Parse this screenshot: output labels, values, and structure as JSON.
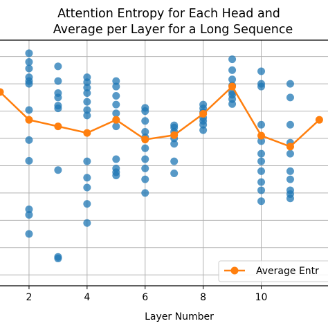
{
  "chart_data": {
    "type": "scatter",
    "title": [
      "Attention Entropy for Each Head and",
      "Average per Layer for a Long Sequence"
    ],
    "xlabel": "Layer Number",
    "ylabel": "",
    "x_ticks": [
      2,
      4,
      6,
      8,
      10
    ],
    "xlim": [
      1,
      12.3
    ],
    "ylim": [
      0.8,
      5.3
    ],
    "grid": true,
    "legend": {
      "position": "bottom-right",
      "entries": [
        "Average Entr"
      ]
    },
    "colors": {
      "heads": "#1f77b4",
      "average": "#ff7f0e",
      "grid": "#b0b0b0"
    },
    "series": [
      {
        "kind": "scatter",
        "points": [
          [
            2,
            5.06
          ],
          [
            2,
            4.9
          ],
          [
            2,
            4.78
          ],
          [
            2,
            4.62
          ],
          [
            2,
            4.55
          ],
          [
            2,
            4.5
          ],
          [
            2,
            4.02
          ],
          [
            2,
            3.47
          ],
          [
            2,
            3.09
          ],
          [
            2,
            2.2
          ],
          [
            2,
            2.1
          ],
          [
            2,
            1.75
          ],
          [
            3,
            4.82
          ],
          [
            3,
            4.55
          ],
          [
            3,
            4.33
          ],
          [
            3,
            4.25
          ],
          [
            3,
            4.1
          ],
          [
            3,
            4.05
          ],
          [
            3,
            2.92
          ],
          [
            3,
            1.33
          ],
          [
            3,
            1.3
          ],
          [
            4,
            4.62
          ],
          [
            4,
            4.53
          ],
          [
            4,
            4.43
          ],
          [
            4,
            4.33
          ],
          [
            4,
            4.17
          ],
          [
            4,
            4.02
          ],
          [
            4,
            3.92
          ],
          [
            4,
            3.08
          ],
          [
            4,
            2.78
          ],
          [
            4,
            2.6
          ],
          [
            4,
            2.3
          ],
          [
            4,
            1.95
          ],
          [
            5,
            4.55
          ],
          [
            5,
            4.45
          ],
          [
            5,
            4.28
          ],
          [
            5,
            4.12
          ],
          [
            5,
            3.96
          ],
          [
            5,
            3.72
          ],
          [
            5,
            3.12
          ],
          [
            5,
            2.95
          ],
          [
            5,
            2.88
          ],
          [
            5,
            2.82
          ],
          [
            6,
            4.06
          ],
          [
            6,
            4.0
          ],
          [
            6,
            3.82
          ],
          [
            6,
            3.62
          ],
          [
            6,
            3.52
          ],
          [
            6,
            3.32
          ],
          [
            6,
            3.12
          ],
          [
            6,
            2.95
          ],
          [
            6,
            2.75
          ],
          [
            6,
            2.5
          ],
          [
            7,
            3.74
          ],
          [
            7,
            3.7
          ],
          [
            7,
            3.62
          ],
          [
            7,
            3.5
          ],
          [
            7,
            3.4
          ],
          [
            7,
            3.08
          ],
          [
            7,
            2.86
          ],
          [
            8,
            4.12
          ],
          [
            8,
            4.05
          ],
          [
            8,
            3.98
          ],
          [
            8,
            3.88
          ],
          [
            8,
            3.82
          ],
          [
            8,
            3.75
          ],
          [
            8,
            3.65
          ],
          [
            9,
            4.95
          ],
          [
            9,
            4.75
          ],
          [
            9,
            4.58
          ],
          [
            9,
            4.47
          ],
          [
            9,
            4.35
          ],
          [
            9,
            4.3
          ],
          [
            9,
            4.22
          ],
          [
            9,
            4.13
          ],
          [
            10,
            4.73
          ],
          [
            10,
            4.5
          ],
          [
            10,
            4.45
          ],
          [
            10,
            3.75
          ],
          [
            10,
            3.45
          ],
          [
            10,
            3.22
          ],
          [
            10,
            3.08
          ],
          [
            10,
            2.9
          ],
          [
            10,
            2.7
          ],
          [
            10,
            2.55
          ],
          [
            10,
            2.35
          ],
          [
            11,
            4.5
          ],
          [
            11,
            4.25
          ],
          [
            11,
            3.75
          ],
          [
            11,
            3.42
          ],
          [
            11,
            3.22
          ],
          [
            11,
            2.9
          ],
          [
            11,
            2.75
          ],
          [
            11,
            2.55
          ],
          [
            11,
            2.48
          ],
          [
            11,
            2.4
          ]
        ]
      },
      {
        "name": "Average Entr",
        "kind": "line",
        "x": [
          1,
          2,
          3,
          4,
          5,
          6,
          7,
          8,
          9,
          10,
          11,
          12
        ],
        "y": [
          4.35,
          3.84,
          3.72,
          3.6,
          3.84,
          3.48,
          3.56,
          3.95,
          4.45,
          3.55,
          3.35,
          3.84
        ]
      }
    ]
  }
}
